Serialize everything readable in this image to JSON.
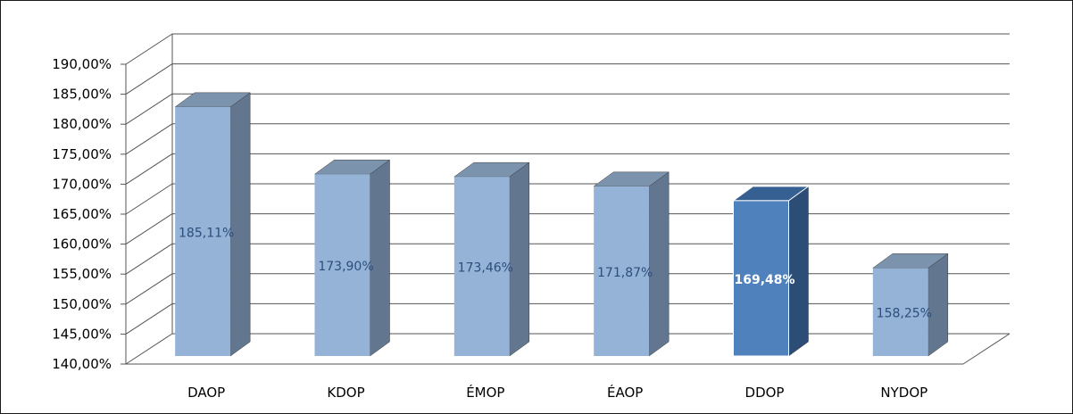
{
  "chart_data": {
    "type": "bar",
    "style": "3d-column",
    "categories": [
      "DAOP",
      "KDOP",
      "ÉMOP",
      "ÉAOP",
      "DDOP",
      "NYDOP"
    ],
    "values": [
      185.11,
      173.9,
      173.46,
      171.87,
      169.48,
      158.25
    ],
    "data_labels": [
      "185,11%",
      "173,90%",
      "173,46%",
      "171,87%",
      "169,48%",
      "158,25%"
    ],
    "y_ticks": [
      "140,00%",
      "145,00%",
      "150,00%",
      "155,00%",
      "160,00%",
      "165,00%",
      "170,00%",
      "175,00%",
      "180,00%",
      "185,00%",
      "190,00%"
    ],
    "ylim": [
      140,
      190
    ],
    "grid": true,
    "legend": "none",
    "highlighted_category": "DDOP",
    "colors": {
      "bar_front": "#95b3d7",
      "bar_top": "#7c93ad",
      "bar_side": "#62778f",
      "highlight_front": "#4f81bd",
      "highlight_top": "#376092",
      "highlight_side": "#2c4d75",
      "label_text": "#2b4e7c",
      "highlight_label_text": "#ffffff",
      "grid": "#555555"
    }
  }
}
